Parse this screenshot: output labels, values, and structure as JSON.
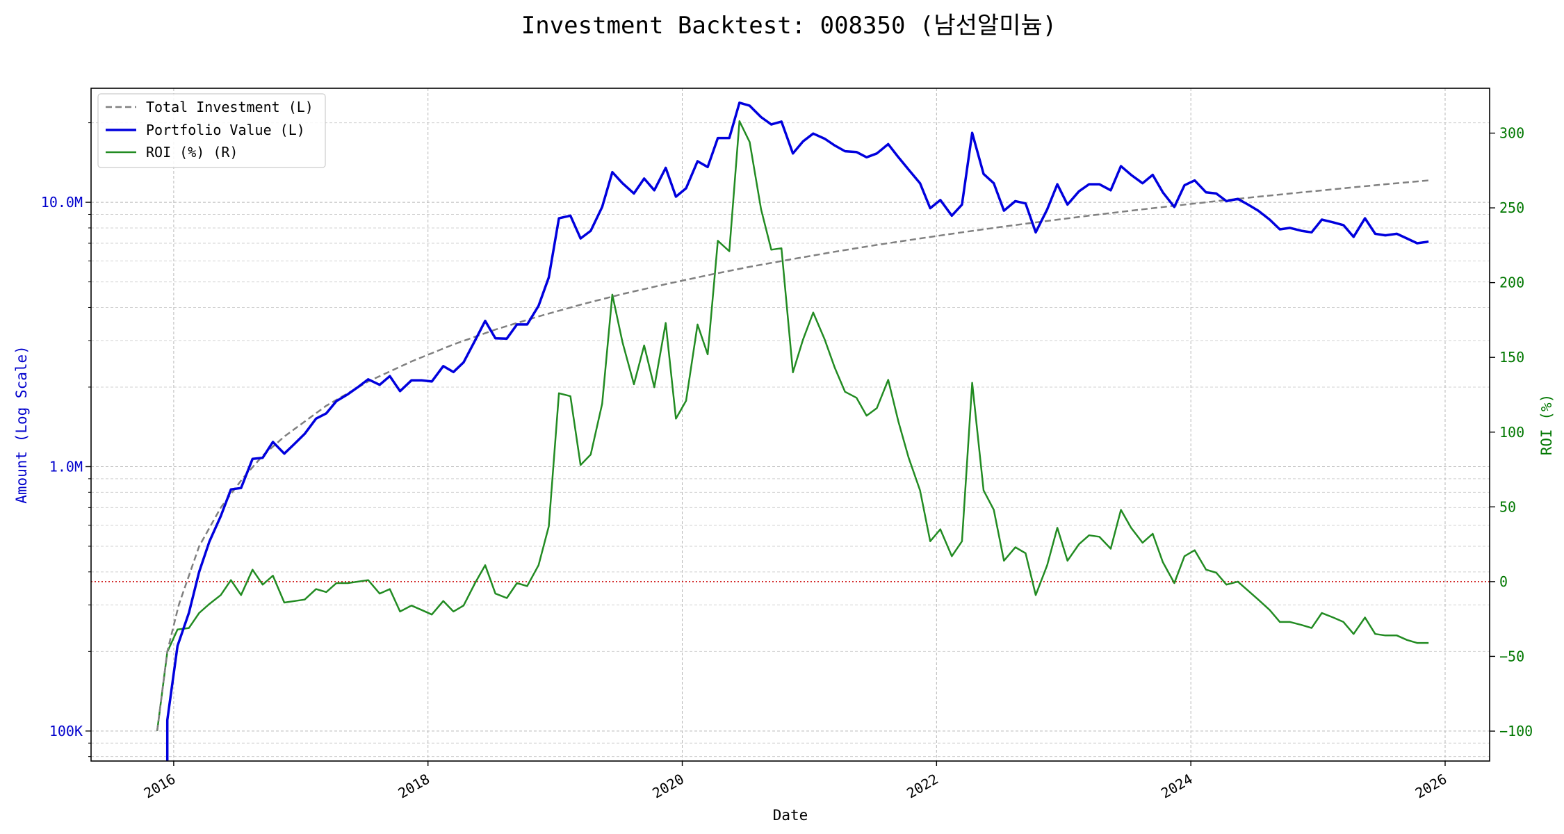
{
  "chart_data": {
    "type": "line",
    "title": "Investment Backtest: 008350 (남선알미늄)",
    "xlabel": "Date",
    "ylabel_left": "Amount (Log Scale)",
    "ylabel_right": "ROI (%)",
    "x_ticks": [
      "2016",
      "2018",
      "2020",
      "2022",
      "2024",
      "2026"
    ],
    "x_range": [
      2015.35,
      2026.35
    ],
    "left_axis": {
      "scale": "log",
      "range": [
        77000,
        27000000
      ],
      "tick_values": [
        100000,
        1000000,
        10000000
      ],
      "tick_labels": [
        "100K",
        "1.0M",
        "10.0M"
      ],
      "color": "#0000cc"
    },
    "right_axis": {
      "scale": "linear",
      "range": [
        -120,
        330
      ],
      "tick_values": [
        -100,
        -50,
        0,
        50,
        100,
        150,
        200,
        250,
        300
      ],
      "tick_labels": [
        "−100",
        "−50",
        "0",
        "50",
        "100",
        "150",
        "200",
        "250",
        "300"
      ],
      "color": "#007700"
    },
    "grid": true,
    "zero_line": {
      "value": 0,
      "axis": "right",
      "color": "#cc0000"
    },
    "legend": {
      "position": "top-left",
      "entries": [
        "Total Investment (L)",
        "Portfolio Value (L)",
        "ROI (%) (R)"
      ]
    },
    "series": [
      {
        "name": "Total Investment (L)",
        "axis": "left",
        "style": "dashed",
        "color": "#808080",
        "x": [
          2015.87,
          2015.95,
          2016.04,
          2016.2,
          2016.37,
          2016.54,
          2016.7,
          2016.87,
          2017.2,
          2017.53,
          2017.87,
          2018.2,
          2018.53,
          2018.87,
          2019.2,
          2019.53,
          2019.87,
          2020.2,
          2020.53,
          2020.87,
          2021.2,
          2021.53,
          2021.87,
          2022.2,
          2022.53,
          2022.87,
          2023.2,
          2023.53,
          2023.87,
          2024.2,
          2024.53,
          2024.87,
          2025.2,
          2025.53,
          2025.87
        ],
        "values": [
          100000,
          200000,
          300000,
          500000,
          700000,
          900000,
          1100000,
          1300000,
          1700000,
          2100000,
          2500000,
          2900000,
          3300000,
          3700000,
          4100000,
          4500000,
          4900000,
          5300000,
          5700000,
          6100000,
          6500000,
          6900000,
          7300000,
          7700000,
          8100000,
          8500000,
          8900000,
          9300000,
          9700000,
          10100000,
          10500000,
          10900000,
          11300000,
          11700000,
          12100000
        ]
      },
      {
        "name": "Portfolio Value (L)",
        "axis": "left",
        "style": "solid",
        "color": "#0000dd",
        "x": [
          2015.95,
          2015.95,
          2016.03,
          2016.12,
          2016.2,
          2016.28,
          2016.37,
          2016.45,
          2016.53,
          2016.62,
          2016.7,
          2016.78,
          2016.87,
          2016.95,
          2017.03,
          2017.12,
          2017.2,
          2017.28,
          2017.37,
          2017.45,
          2017.53,
          2017.62,
          2017.7,
          2017.78,
          2017.87,
          2017.95,
          2018.03,
          2018.12,
          2018.2,
          2018.28,
          2018.37,
          2018.45,
          2018.53,
          2018.62,
          2018.7,
          2018.78,
          2018.87,
          2018.95,
          2019.03,
          2019.12,
          2019.2,
          2019.28,
          2019.37,
          2019.45,
          2019.53,
          2019.62,
          2019.7,
          2019.78,
          2019.87,
          2019.95,
          2020.03,
          2020.12,
          2020.2,
          2020.28,
          2020.37,
          2020.45,
          2020.53,
          2020.62,
          2020.7,
          2020.78,
          2020.87,
          2020.95,
          2021.03,
          2021.12,
          2021.2,
          2021.28,
          2021.37,
          2021.45,
          2021.53,
          2021.62,
          2021.7,
          2021.78,
          2021.87,
          2021.95,
          2022.03,
          2022.12,
          2022.2,
          2022.28,
          2022.37,
          2022.45,
          2022.53,
          2022.62,
          2022.7,
          2022.78,
          2022.87,
          2022.95,
          2023.03,
          2023.12,
          2023.2,
          2023.28,
          2023.37,
          2023.45,
          2023.53,
          2023.62,
          2023.7,
          2023.78,
          2023.87,
          2023.95,
          2024.03,
          2024.12,
          2024.2,
          2024.28,
          2024.37,
          2024.45,
          2024.53,
          2024.62,
          2024.7,
          2024.78,
          2024.87,
          2024.95,
          2025.03,
          2025.12,
          2025.2,
          2025.28,
          2025.37,
          2025.45,
          2025.53,
          2025.62,
          2025.7,
          2025.78,
          2025.87
        ],
        "values": [
          75000,
          110000,
          210000,
          280000,
          400000,
          520000,
          650000,
          820000,
          830000,
          1070000,
          1080000,
          1240000,
          1120000,
          1220000,
          1330000,
          1520000,
          1590000,
          1770000,
          1880000,
          2000000,
          2140000,
          2040000,
          2200000,
          1930000,
          2120000,
          2120000,
          2100000,
          2400000,
          2280000,
          2480000,
          3000000,
          3560000,
          3060000,
          3050000,
          3450000,
          3450000,
          4060000,
          5200000,
          8700000,
          8900000,
          7300000,
          7800000,
          9600000,
          13000000,
          11800000,
          10800000,
          12300000,
          11100000,
          13500000,
          10500000,
          11300000,
          14300000,
          13600000,
          17500000,
          17500000,
          23800000,
          23200000,
          21000000,
          19700000,
          20200000,
          15300000,
          17000000,
          18200000,
          17400000,
          16400000,
          15600000,
          15500000,
          14800000,
          15300000,
          16600000,
          14800000,
          13300000,
          11800000,
          9500000,
          10200000,
          8900000,
          9800000,
          18300000,
          12800000,
          11800000,
          9300000,
          10100000,
          9900000,
          7700000,
          9400000,
          11700000,
          9800000,
          11000000,
          11700000,
          11700000,
          11100000,
          13700000,
          12700000,
          11800000,
          12700000,
          10900000,
          9600000,
          11600000,
          12100000,
          10900000,
          10800000,
          10100000,
          10300000,
          9800000,
          9300000,
          8600000,
          7900000,
          8000000,
          7800000,
          7700000,
          8600000,
          8400000,
          8200000,
          7400000,
          8700000,
          7600000,
          7500000,
          7600000,
          7300000,
          7000000,
          7100000
        ]
      },
      {
        "name": "ROI (%) (R)",
        "axis": "right",
        "style": "solid",
        "color": "#228b22",
        "x": [
          2015.87,
          2015.95,
          2016.03,
          2016.12,
          2016.2,
          2016.28,
          2016.37,
          2016.45,
          2016.53,
          2016.62,
          2016.7,
          2016.78,
          2016.87,
          2016.95,
          2017.03,
          2017.12,
          2017.2,
          2017.28,
          2017.37,
          2017.45,
          2017.53,
          2017.62,
          2017.7,
          2017.78,
          2017.87,
          2017.95,
          2018.03,
          2018.12,
          2018.2,
          2018.28,
          2018.37,
          2018.45,
          2018.53,
          2018.62,
          2018.7,
          2018.78,
          2018.87,
          2018.95,
          2019.03,
          2019.12,
          2019.2,
          2019.28,
          2019.37,
          2019.45,
          2019.53,
          2019.62,
          2019.7,
          2019.78,
          2019.87,
          2019.95,
          2020.03,
          2020.12,
          2020.2,
          2020.28,
          2020.37,
          2020.45,
          2020.53,
          2020.62,
          2020.7,
          2020.78,
          2020.87,
          2020.95,
          2021.03,
          2021.12,
          2021.2,
          2021.28,
          2021.37,
          2021.45,
          2021.53,
          2021.62,
          2021.7,
          2021.78,
          2021.87,
          2021.95,
          2022.03,
          2022.12,
          2022.2,
          2022.28,
          2022.37,
          2022.45,
          2022.53,
          2022.62,
          2022.7,
          2022.78,
          2022.87,
          2022.95,
          2023.03,
          2023.12,
          2023.2,
          2023.28,
          2023.37,
          2023.45,
          2023.53,
          2023.62,
          2023.7,
          2023.78,
          2023.87,
          2023.95,
          2024.03,
          2024.12,
          2024.2,
          2024.28,
          2024.37,
          2024.45,
          2024.53,
          2024.62,
          2024.7,
          2024.78,
          2024.87,
          2024.95,
          2025.03,
          2025.12,
          2025.2,
          2025.28,
          2025.37,
          2025.45,
          2025.53,
          2025.62,
          2025.7,
          2025.78,
          2025.87
        ],
        "values": [
          -100,
          -47,
          -32,
          -31,
          -21,
          -15,
          -9,
          1,
          -9,
          8,
          -2,
          4,
          -14,
          -13,
          -12,
          -5,
          -7,
          -1,
          -1,
          0,
          1,
          -8,
          -5,
          -20,
          -16,
          -19,
          -22,
          -13,
          -20,
          -16,
          -1,
          11,
          -8,
          -11,
          -1,
          -3,
          11,
          37,
          126,
          124,
          78,
          85,
          119,
          192,
          160,
          132,
          158,
          130,
          173,
          109,
          121,
          172,
          152,
          228,
          221,
          308,
          294,
          249,
          222,
          223,
          140,
          162,
          180,
          162,
          143,
          127,
          123,
          111,
          116,
          135,
          107,
          83,
          61,
          27,
          35,
          17,
          27,
          133,
          61,
          48,
          14,
          23,
          19,
          -9,
          11,
          36,
          14,
          25,
          31,
          30,
          22,
          48,
          36,
          26,
          32,
          13,
          -1,
          17,
          21,
          8,
          6,
          -2,
          0,
          -6,
          -12,
          -19,
          -27,
          -27,
          -29,
          -31,
          -21,
          -24,
          -27,
          -35,
          -24,
          -35,
          -36,
          -36,
          -39,
          -41,
          -41
        ]
      }
    ]
  }
}
